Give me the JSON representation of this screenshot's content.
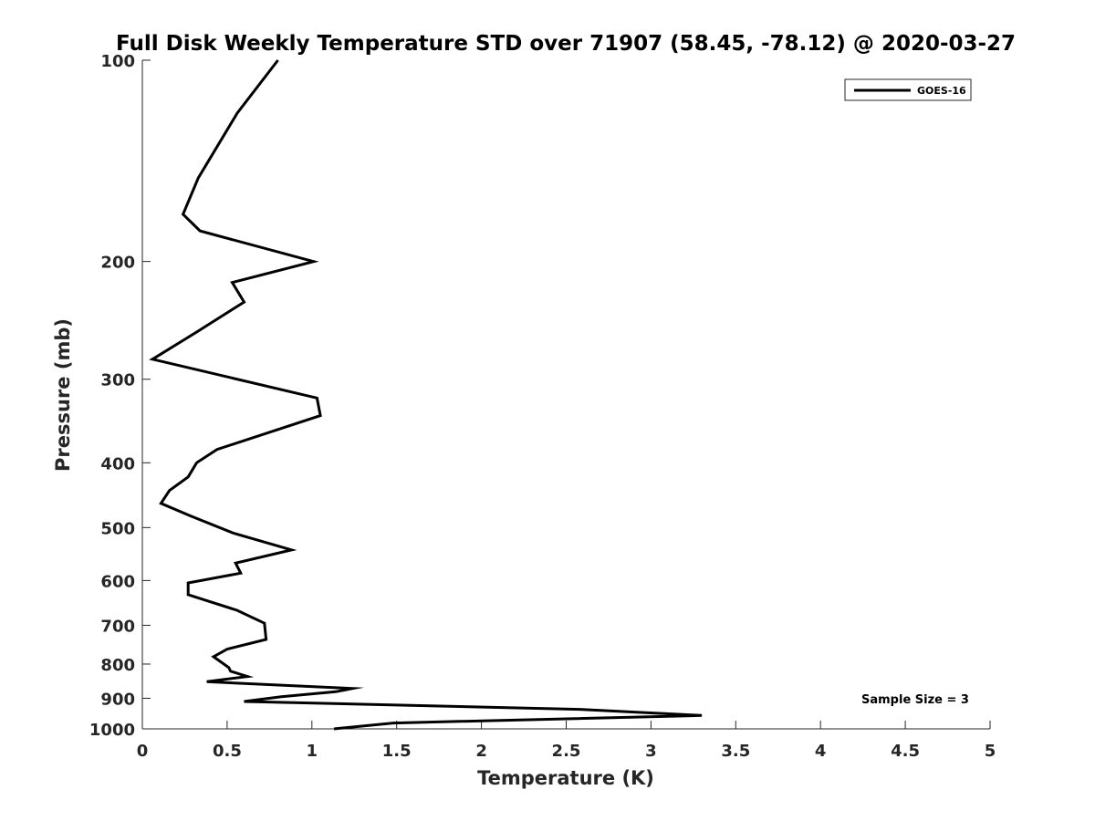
{
  "chart_data": {
    "type": "line",
    "title": "Full Disk Weekly Temperature STD over 71907 (58.45, -78.12) @ 2020-03-27",
    "xlabel": "Temperature (K)",
    "ylabel": "Pressure (mb)",
    "xlim": [
      0,
      5
    ],
    "ylim": [
      100,
      1000
    ],
    "y_scale": "log",
    "y_reversed": true,
    "x_ticks": [
      0,
      0.5,
      1,
      1.5,
      2,
      2.5,
      3,
      3.5,
      4,
      4.5,
      5
    ],
    "x_tick_labels": [
      "0",
      "0.5",
      "1",
      "1.5",
      "2",
      "2.5",
      "3",
      "3.5",
      "4",
      "4.5",
      "5"
    ],
    "y_ticks": [
      100,
      200,
      300,
      400,
      500,
      600,
      700,
      800,
      900,
      1000
    ],
    "y_tick_labels": [
      "100",
      "200",
      "300",
      "400",
      "500",
      "600",
      "700",
      "800",
      "900",
      "1000"
    ],
    "grid": false,
    "legend": {
      "placement": "top-right",
      "entries": [
        "GOES-16"
      ]
    },
    "annotation": "Sample Size = 3",
    "line_color": "#000000",
    "series": [
      {
        "name": "GOES-16",
        "x": [
          0.8,
          0.56,
          0.33,
          0.24,
          0.34,
          1.01,
          0.53,
          0.6,
          0.32,
          0.06,
          1.03,
          1.05,
          0.44,
          0.32,
          0.27,
          0.16,
          0.11,
          0.28,
          0.54,
          0.88,
          0.55,
          0.58,
          0.27,
          0.27,
          0.56,
          0.72,
          0.73,
          0.5,
          0.42,
          0.51,
          0.52,
          0.62,
          0.38,
          1.24,
          1.14,
          0.82,
          0.6,
          2.58,
          3.3,
          1.48,
          1.13
        ],
        "y": [
          100,
          120,
          150,
          170,
          180,
          200,
          215,
          230,
          255,
          280,
          320,
          340,
          382,
          400,
          420,
          440,
          460,
          480,
          510,
          540,
          565,
          585,
          605,
          630,
          665,
          695,
          735,
          760,
          780,
          810,
          820,
          835,
          850,
          870,
          880,
          895,
          910,
          935,
          955,
          980,
          1000
        ]
      }
    ]
  }
}
